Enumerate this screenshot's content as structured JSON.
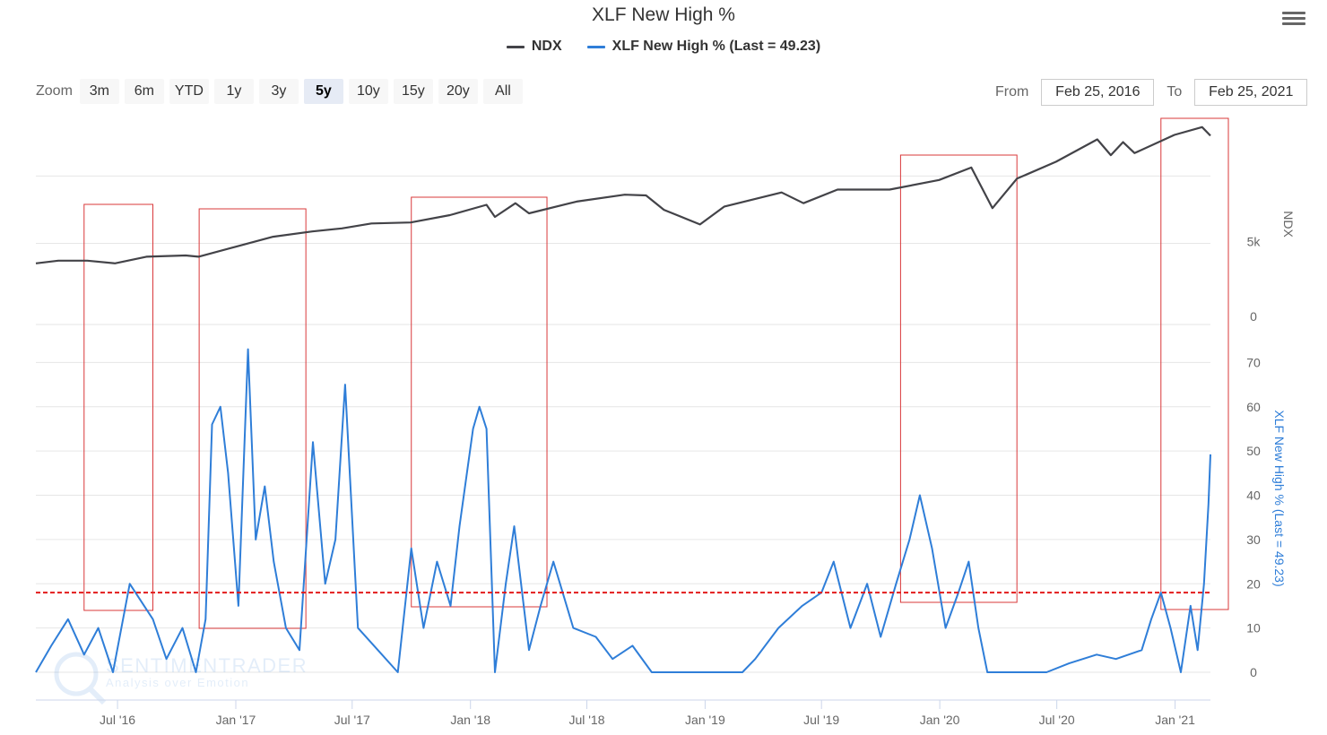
{
  "chart": {
    "title": "XLF New High %",
    "legend": [
      {
        "name": "NDX",
        "color": "#434348"
      },
      {
        "name": "XLF New High % (Last = 49.23)",
        "color": "#2f7ed8"
      }
    ]
  },
  "toolbar": {
    "zoom_label": "Zoom",
    "zoom_buttons": [
      "3m",
      "6m",
      "YTD",
      "1y",
      "3y",
      "5y",
      "10y",
      "15y",
      "20y",
      "All"
    ],
    "active_zoom": "5y",
    "from_label": "From",
    "from_value": "Feb 25, 2016",
    "to_label": "To",
    "to_value": "Feb 25, 2021",
    "menu_icon": "hamburger-menu-icon"
  },
  "watermark": {
    "brand": "SENTIMENTRADER",
    "tagline": "Analysis over Emotion"
  },
  "chart_data": {
    "type": "line",
    "x_axis": {
      "type": "datetime",
      "range": [
        "2016-02-25",
        "2021-02-25"
      ],
      "tick_labels": [
        "Jul '16",
        "Jan '17",
        "Jul '17",
        "Jan '18",
        "Jul '18",
        "Jan '19",
        "Jul '19",
        "Jan '20",
        "Jul '20",
        "Jan '21"
      ]
    },
    "y_axes": [
      {
        "label": "NDX",
        "scale": "log",
        "tick_labels": [
          "5k"
        ],
        "tick_values": [
          5000
        ],
        "range": [
          1000,
          14000
        ]
      },
      {
        "label": "XLF New High % (Last = 49.23)",
        "tick_labels": [
          "0",
          "10",
          "20",
          "30",
          "40",
          "50",
          "60",
          "70"
        ],
        "ticks": [
          0,
          10,
          20,
          30,
          40,
          50,
          60,
          70
        ],
        "range": [
          0,
          80
        ]
      }
    ],
    "reference_line": {
      "axis": "XLF New High %",
      "value": 18,
      "style": "dashed",
      "color": "#e21b1b"
    },
    "series": [
      {
        "name": "NDX",
        "color": "#434348",
        "points": [
          [
            "2016-02-25",
            4200
          ],
          [
            "2016-03-31",
            4300
          ],
          [
            "2016-05-15",
            4300
          ],
          [
            "2016-06-27",
            4200
          ],
          [
            "2016-08-15",
            4450
          ],
          [
            "2016-10-15",
            4500
          ],
          [
            "2016-11-04",
            4450
          ],
          [
            "2016-12-31",
            4850
          ],
          [
            "2017-02-28",
            5300
          ],
          [
            "2017-04-30",
            5550
          ],
          [
            "2017-06-15",
            5700
          ],
          [
            "2017-07-31",
            5950
          ],
          [
            "2017-09-30",
            6000
          ],
          [
            "2017-11-30",
            6400
          ],
          [
            "2018-01-26",
            7000
          ],
          [
            "2018-02-08",
            6300
          ],
          [
            "2018-03-12",
            7100
          ],
          [
            "2018-04-02",
            6500
          ],
          [
            "2018-06-15",
            7200
          ],
          [
            "2018-08-29",
            7650
          ],
          [
            "2018-10-01",
            7600
          ],
          [
            "2018-10-29",
            6700
          ],
          [
            "2018-12-24",
            5900
          ],
          [
            "2019-01-31",
            6900
          ],
          [
            "2019-04-30",
            7800
          ],
          [
            "2019-06-03",
            7100
          ],
          [
            "2019-07-26",
            8000
          ],
          [
            "2019-10-15",
            8000
          ],
          [
            "2019-12-31",
            8700
          ],
          [
            "2020-02-19",
            9700
          ],
          [
            "2020-03-23",
            6800
          ],
          [
            "2020-04-30",
            8800
          ],
          [
            "2020-06-30",
            10200
          ],
          [
            "2020-09-02",
            12400
          ],
          [
            "2020-09-23",
            10800
          ],
          [
            "2020-10-12",
            12100
          ],
          [
            "2020-10-30",
            11000
          ],
          [
            "2020-12-31",
            12900
          ],
          [
            "2021-02-12",
            13800
          ],
          [
            "2021-02-25",
            12800
          ]
        ]
      },
      {
        "name": "XLF New High % (Last = 49.23)",
        "color": "#2f7ed8",
        "points": [
          [
            "2016-02-25",
            0
          ],
          [
            "2016-03-20",
            6
          ],
          [
            "2016-04-15",
            12
          ],
          [
            "2016-05-10",
            4
          ],
          [
            "2016-06-01",
            10
          ],
          [
            "2016-06-24",
            0
          ],
          [
            "2016-07-20",
            20
          ],
          [
            "2016-08-25",
            12
          ],
          [
            "2016-09-15",
            3
          ],
          [
            "2016-10-10",
            10
          ],
          [
            "2016-10-31",
            0
          ],
          [
            "2016-11-15",
            12
          ],
          [
            "2016-11-25",
            56
          ],
          [
            "2016-12-08",
            60
          ],
          [
            "2016-12-20",
            45
          ],
          [
            "2017-01-05",
            15
          ],
          [
            "2017-01-20",
            73
          ],
          [
            "2017-02-01",
            30
          ],
          [
            "2017-02-15",
            42
          ],
          [
            "2017-03-01",
            25
          ],
          [
            "2017-03-20",
            10
          ],
          [
            "2017-04-10",
            5
          ],
          [
            "2017-05-01",
            52
          ],
          [
            "2017-05-20",
            20
          ],
          [
            "2017-06-05",
            30
          ],
          [
            "2017-06-20",
            65
          ],
          [
            "2017-07-10",
            10
          ],
          [
            "2017-08-10",
            5
          ],
          [
            "2017-09-10",
            0
          ],
          [
            "2017-10-01",
            28
          ],
          [
            "2017-10-20",
            10
          ],
          [
            "2017-11-10",
            25
          ],
          [
            "2017-12-01",
            15
          ],
          [
            "2017-12-15",
            33
          ],
          [
            "2018-01-05",
            55
          ],
          [
            "2018-01-15",
            60
          ],
          [
            "2018-01-26",
            55
          ],
          [
            "2018-02-08",
            0
          ],
          [
            "2018-02-25",
            20
          ],
          [
            "2018-03-10",
            33
          ],
          [
            "2018-04-02",
            5
          ],
          [
            "2018-04-20",
            15
          ],
          [
            "2018-05-10",
            25
          ],
          [
            "2018-06-10",
            10
          ],
          [
            "2018-07-15",
            8
          ],
          [
            "2018-08-10",
            3
          ],
          [
            "2018-09-10",
            6
          ],
          [
            "2018-10-10",
            0
          ],
          [
            "2018-11-15",
            0
          ],
          [
            "2018-12-24",
            0
          ],
          [
            "2019-01-15",
            0
          ],
          [
            "2019-02-28",
            0
          ],
          [
            "2019-03-20",
            3
          ],
          [
            "2019-04-25",
            10
          ],
          [
            "2019-06-01",
            15
          ],
          [
            "2019-07-01",
            18
          ],
          [
            "2019-07-20",
            25
          ],
          [
            "2019-08-15",
            10
          ],
          [
            "2019-09-10",
            20
          ],
          [
            "2019-10-01",
            8
          ],
          [
            "2019-10-25",
            20
          ],
          [
            "2019-11-15",
            30
          ],
          [
            "2019-12-01",
            40
          ],
          [
            "2019-12-20",
            28
          ],
          [
            "2020-01-10",
            10
          ],
          [
            "2020-01-30",
            18
          ],
          [
            "2020-02-15",
            25
          ],
          [
            "2020-03-01",
            10
          ],
          [
            "2020-03-15",
            0
          ],
          [
            "2020-04-30",
            0
          ],
          [
            "2020-06-15",
            0
          ],
          [
            "2020-07-20",
            2
          ],
          [
            "2020-09-01",
            4
          ],
          [
            "2020-10-01",
            3
          ],
          [
            "2020-11-10",
            5
          ],
          [
            "2020-11-25",
            12
          ],
          [
            "2020-12-10",
            18
          ],
          [
            "2020-12-25",
            10
          ],
          [
            "2021-01-10",
            0
          ],
          [
            "2021-01-25",
            15
          ],
          [
            "2021-02-05",
            5
          ],
          [
            "2021-02-15",
            20
          ],
          [
            "2021-02-22",
            38
          ],
          [
            "2021-02-25",
            49.23
          ]
        ]
      }
    ],
    "highlight_boxes": [
      {
        "from": "2016-05-10",
        "to": "2016-08-25"
      },
      {
        "from": "2016-11-05",
        "to": "2017-04-20"
      },
      {
        "from": "2017-10-01",
        "to": "2018-04-30"
      },
      {
        "from": "2019-11-01",
        "to": "2020-04-30"
      },
      {
        "from": "2020-12-10",
        "to": "2021-02-25"
      }
    ]
  }
}
